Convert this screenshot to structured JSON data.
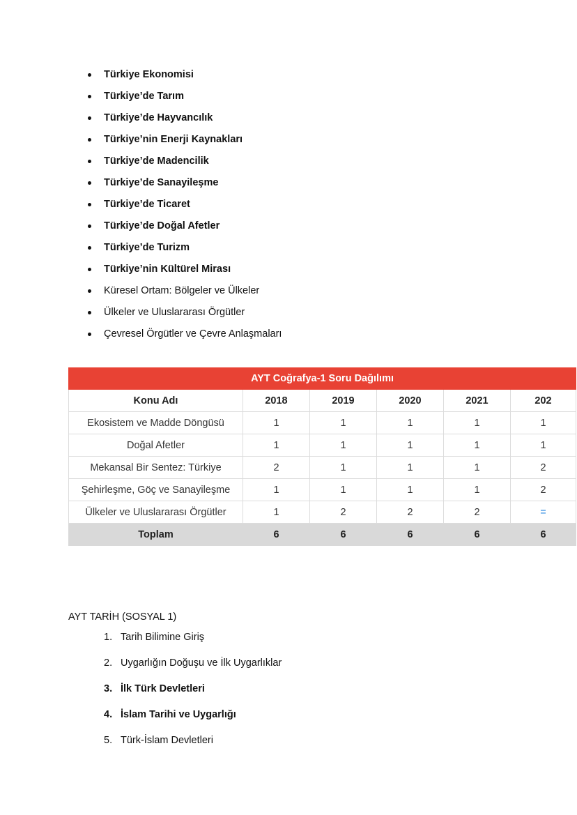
{
  "topics": [
    {
      "label": "Türkiye Ekonomisi",
      "bold": true
    },
    {
      "label": "Türkiye’de Tarım",
      "bold": true
    },
    {
      "label": "Türkiye’de Hayvancılık",
      "bold": true
    },
    {
      "label": "Türkiye’nin Enerji Kaynakları",
      "bold": true
    },
    {
      "label": "Türkiye’de Madencilik",
      "bold": true
    },
    {
      "label": "Türkiye’de Sanayileşme",
      "bold": true
    },
    {
      "label": "Türkiye’de Ticaret",
      "bold": true
    },
    {
      "label": "Türkiye’de Doğal Afetler",
      "bold": true
    },
    {
      "label": "Türkiye’de Turizm",
      "bold": true
    },
    {
      "label": "Türkiye’nin Kültürel Mirası",
      "bold": true
    },
    {
      "label": "Küresel Ortam: Bölgeler ve Ülkeler",
      "bold": false
    },
    {
      "label": "Ülkeler ve Uluslararası Örgütler",
      "bold": false
    },
    {
      "label": "Çevresel Örgütler ve Çevre Anlaşmaları",
      "bold": false
    }
  ],
  "table": {
    "title": "AYT Coğrafya-1 Soru Dağılımı",
    "headers": [
      "Konu Adı",
      "2018",
      "2019",
      "2020",
      "2021",
      "202"
    ],
    "rows": [
      [
        "Ekosistem ve Madde Döngüsü",
        "1",
        "1",
        "1",
        "1",
        "1"
      ],
      [
        "Doğal Afetler",
        "1",
        "1",
        "1",
        "1",
        "1"
      ],
      [
        "Mekansal Bir Sentez: Türkiye",
        "2",
        "1",
        "1",
        "1",
        "2"
      ],
      [
        "Şehirleşme, Göç ve Sanayileşme",
        "1",
        "1",
        "1",
        "1",
        "2"
      ],
      [
        "Ülkeler ve Uluslararası Örgütler",
        "1",
        "2",
        "2",
        "2",
        "="
      ]
    ],
    "total": [
      "Toplam",
      "6",
      "6",
      "6",
      "6",
      "6"
    ]
  },
  "section": {
    "title": "AYT TARİH (SOSYAL 1)",
    "items": [
      {
        "num": "1.",
        "label": "Tarih Bilimine Giriş",
        "bold": false
      },
      {
        "num": "2.",
        "label": "Uygarlığın Doğuşu ve İlk Uygarlıklar",
        "bold": false
      },
      {
        "num": "3.",
        "label": "İlk Türk Devletleri",
        "bold": true
      },
      {
        "num": "4.",
        "label": "İslam Tarihi ve Uygarlığı",
        "bold": true
      },
      {
        "num": "5.",
        "label": "Türk-İslam Devletleri",
        "bold": false
      }
    ]
  }
}
